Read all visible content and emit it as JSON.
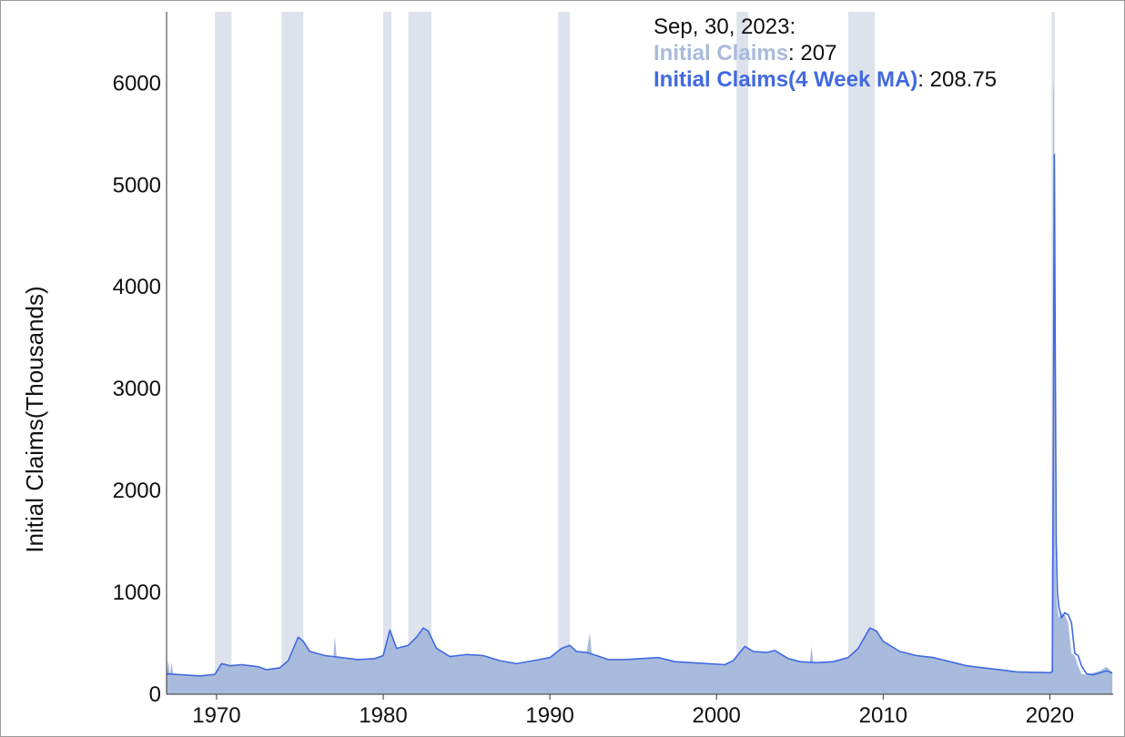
{
  "chart_data": {
    "type": "area",
    "title": "",
    "xlabel": "",
    "ylabel": "Initial Claims(Thousands)",
    "xlim": [
      1967.0,
      2023.8
    ],
    "ylim": [
      0,
      6700
    ],
    "x_ticks": [
      1970,
      1980,
      1990,
      2000,
      2010,
      2020
    ],
    "y_ticks": [
      0,
      1000,
      2000,
      3000,
      4000,
      5000,
      6000
    ],
    "grid": false,
    "legend_position": "top-right",
    "colors": {
      "weekly": "#a9bbdc",
      "ma": "#4169e1",
      "shade": "#dde2ec"
    },
    "recessions": [
      [
        1969.9,
        1970.9
      ],
      [
        1973.9,
        1975.2
      ],
      [
        1980.0,
        1980.5
      ],
      [
        1981.5,
        1982.9
      ],
      [
        1990.5,
        1991.2
      ],
      [
        2001.2,
        2001.9
      ],
      [
        2007.9,
        2009.5
      ],
      [
        2020.1,
        2020.3
      ]
    ],
    "series": [
      {
        "name": "Initial Claims(4 Week MA)",
        "x": [
          1967.0,
          1968.0,
          1969.0,
          1969.9,
          1970.3,
          1970.8,
          1971.5,
          1972.5,
          1973.0,
          1973.8,
          1974.3,
          1974.9,
          1975.2,
          1975.6,
          1976.5,
          1977.5,
          1978.5,
          1979.5,
          1980.0,
          1980.4,
          1980.8,
          1981.5,
          1982.0,
          1982.4,
          1982.7,
          1983.2,
          1984.0,
          1985.0,
          1986.0,
          1987.0,
          1988.0,
          1989.0,
          1990.0,
          1990.7,
          1991.2,
          1991.6,
          1992.2,
          1992.8,
          1993.5,
          1994.5,
          1995.5,
          1996.5,
          1997.5,
          1998.5,
          1999.5,
          2000.5,
          2001.0,
          2001.7,
          2002.2,
          2003.0,
          2003.5,
          2004.3,
          2005.0,
          2006.0,
          2007.0,
          2007.9,
          2008.5,
          2009.2,
          2009.6,
          2010.0,
          2011.0,
          2012.0,
          2013.0,
          2014.0,
          2015.0,
          2016.0,
          2017.0,
          2018.0,
          2019.0,
          2020.0,
          2020.15,
          2020.22,
          2020.27,
          2020.32,
          2020.38,
          2020.45,
          2020.55,
          2020.7,
          2020.9,
          2021.1,
          2021.3,
          2021.5,
          2021.7,
          2021.9,
          2022.2,
          2022.6,
          2023.0,
          2023.4,
          2023.75
        ],
        "values": [
          200,
          190,
          180,
          195,
          300,
          280,
          290,
          270,
          240,
          260,
          330,
          560,
          520,
          420,
          380,
          360,
          340,
          350,
          380,
          630,
          450,
          480,
          560,
          650,
          620,
          450,
          370,
          390,
          380,
          330,
          300,
          330,
          360,
          450,
          480,
          420,
          410,
          380,
          340,
          340,
          350,
          360,
          320,
          310,
          300,
          290,
          330,
          470,
          420,
          410,
          430,
          350,
          320,
          310,
          320,
          360,
          450,
          650,
          620,
          520,
          420,
          380,
          360,
          320,
          280,
          260,
          240,
          220,
          215,
          212,
          220,
          2900,
          5300,
          3500,
          1500,
          1000,
          850,
          750,
          800,
          780,
          700,
          400,
          380,
          280,
          200,
          190,
          210,
          230,
          208.75
        ]
      },
      {
        "name": "Initial Claims",
        "x": [
          1967.0,
          1967.1,
          1967.2,
          1967.3,
          1967.4,
          1967.5,
          1968.5,
          1969.5,
          1969.9,
          1970.3,
          1970.8,
          1971.5,
          1972.5,
          1973.0,
          1973.8,
          1974.3,
          1974.9,
          1975.2,
          1975.6,
          1976.5,
          1977.0,
          1977.1,
          1977.2,
          1977.5,
          1978.5,
          1979.5,
          1980.0,
          1980.4,
          1980.8,
          1981.5,
          1982.0,
          1982.4,
          1982.7,
          1983.2,
          1984.0,
          1985.0,
          1986.0,
          1987.0,
          1988.0,
          1989.0,
          1990.0,
          1990.7,
          1991.2,
          1991.6,
          1992.2,
          1992.4,
          1992.5,
          1992.6,
          1992.8,
          1993.5,
          1994.5,
          1995.5,
          1996.5,
          1997.5,
          1998.5,
          1999.5,
          2000.5,
          2001.0,
          2001.7,
          2002.2,
          2003.0,
          2003.5,
          2004.3,
          2005.0,
          2005.6,
          2005.7,
          2005.8,
          2006.0,
          2007.0,
          2007.9,
          2008.5,
          2009.2,
          2009.6,
          2010.0,
          2011.0,
          2012.0,
          2013.0,
          2014.0,
          2015.0,
          2016.0,
          2017.0,
          2018.0,
          2019.0,
          2020.0,
          2020.15,
          2020.2,
          2020.24,
          2020.27,
          2020.32,
          2020.38,
          2020.45,
          2020.55,
          2020.7,
          2020.9,
          2021.1,
          2021.3,
          2021.5,
          2021.7,
          2021.9,
          2022.2,
          2022.6,
          2023.0,
          2023.4,
          2023.6,
          2023.75
        ],
        "values": [
          200,
          330,
          190,
          310,
          200,
          190,
          190,
          180,
          195,
          300,
          280,
          290,
          270,
          240,
          260,
          330,
          560,
          520,
          420,
          380,
          360,
          570,
          370,
          360,
          340,
          350,
          380,
          630,
          450,
          480,
          560,
          650,
          620,
          450,
          370,
          390,
          380,
          330,
          300,
          330,
          360,
          450,
          480,
          420,
          410,
          600,
          420,
          380,
          380,
          340,
          340,
          350,
          360,
          320,
          310,
          300,
          290,
          330,
          470,
          420,
          410,
          430,
          350,
          320,
          320,
          470,
          320,
          310,
          320,
          360,
          450,
          650,
          620,
          520,
          420,
          380,
          360,
          320,
          280,
          260,
          240,
          220,
          215,
          212,
          220,
          5900,
          6000,
          3500,
          1500,
          1000,
          850,
          750,
          800,
          780,
          700,
          400,
          380,
          280,
          200,
          190,
          210,
          230,
          270,
          240,
          207
        ]
      }
    ],
    "legend": {
      "date": "Sep, 30, 2023:",
      "items": [
        {
          "name": "Initial Claims",
          "value": "207",
          "color": "#a9bbdc"
        },
        {
          "name": "Initial Claims(4 Week MA)",
          "value": "208.75",
          "color": "#4169e1"
        }
      ]
    }
  }
}
